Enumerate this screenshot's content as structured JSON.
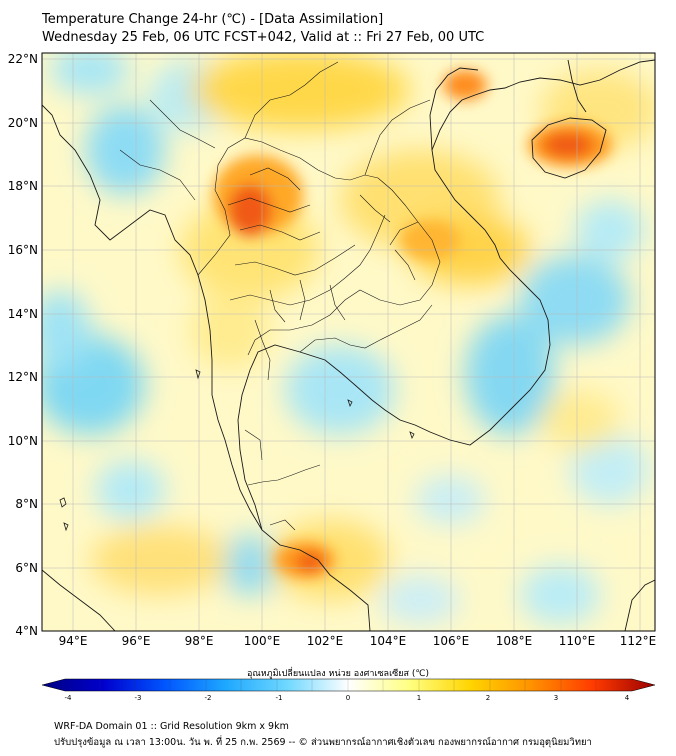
{
  "title": {
    "line1": "Temperature Change 24-hr (℃) - [Data Assimilation]",
    "line2": "Wednesday 25 Feb, 06 UTC FCST+042, Valid at :: Fri 27 Feb, 00 UTC"
  },
  "map": {
    "lat_range": [
      4,
      22.2
    ],
    "lon_range": [
      93,
      112.5
    ],
    "lat_ticks": [
      "22°N",
      "20°N",
      "18°N",
      "16°N",
      "14°N",
      "12°N",
      "10°N",
      "8°N",
      "6°N",
      "4°N"
    ],
    "lon_ticks": [
      "94°E",
      "96°E",
      "98°E",
      "100°E",
      "102°E",
      "104°E",
      "106°E",
      "108°E",
      "110°E",
      "112°E"
    ],
    "hotspots": [
      {
        "region": "northern Thailand",
        "lon": 99.7,
        "lat": 17.2,
        "value": 2.8
      },
      {
        "region": "Hainan",
        "lon": 109.8,
        "lat": 19.3,
        "value": 2.8
      },
      {
        "region": "Gulf of Tonkin north",
        "lon": 106.8,
        "lat": 21.1,
        "value": 2.5
      },
      {
        "region": "southern Thailand",
        "lon": 101.3,
        "lat": 6.2,
        "value": 2.6
      },
      {
        "region": "central Laos",
        "lon": 105.6,
        "lat": 16.0,
        "value": 1.8
      }
    ],
    "coolspots": [
      {
        "region": "Andaman Sea",
        "lon": 94.8,
        "lat": 11.8,
        "value": -1.3
      },
      {
        "region": "Bay of Bengal north",
        "lon": 96.0,
        "lat": 18.5,
        "value": -1.1
      },
      {
        "region": "Gulf of Thailand",
        "lon": 102.0,
        "lat": 11.3,
        "value": -0.9
      },
      {
        "region": "South China Sea coast",
        "lon": 108.7,
        "lat": 11.5,
        "value": -1.2
      },
      {
        "region": "South China Sea",
        "lon": 110.5,
        "lat": 14.3,
        "value": -1.1
      }
    ]
  },
  "colorbar": {
    "title": "อุณหภูมิเปลี่ยนแปลง หน่วย องศาเซลเซียส (℃)",
    "min": -4,
    "max": 4,
    "ticks": [
      "-4",
      "-3",
      "-2",
      "-1",
      "0",
      "1",
      "2",
      "3",
      "4"
    ],
    "stops": [
      "#000080",
      "#0000cd",
      "#0055ff",
      "#1ea8ff",
      "#6fd8ff",
      "#ffffff",
      "#ffff80",
      "#ffd400",
      "#ff9000",
      "#ff3a00",
      "#990000"
    ]
  },
  "footer": {
    "line1": "WRF-DA Domain 01 :: Grid Resolution 9km x 9km",
    "line2": "ปรับปรุงข้อมูล ณ เวลา 13:00น. วัน พ. ที่ 25 ก.พ. 2569 -- © ส่วนพยากรณ์อากาศเชิงตัวเลข กองพยากรณ์อากาศ กรมอุตุนิยมวิทยา"
  }
}
